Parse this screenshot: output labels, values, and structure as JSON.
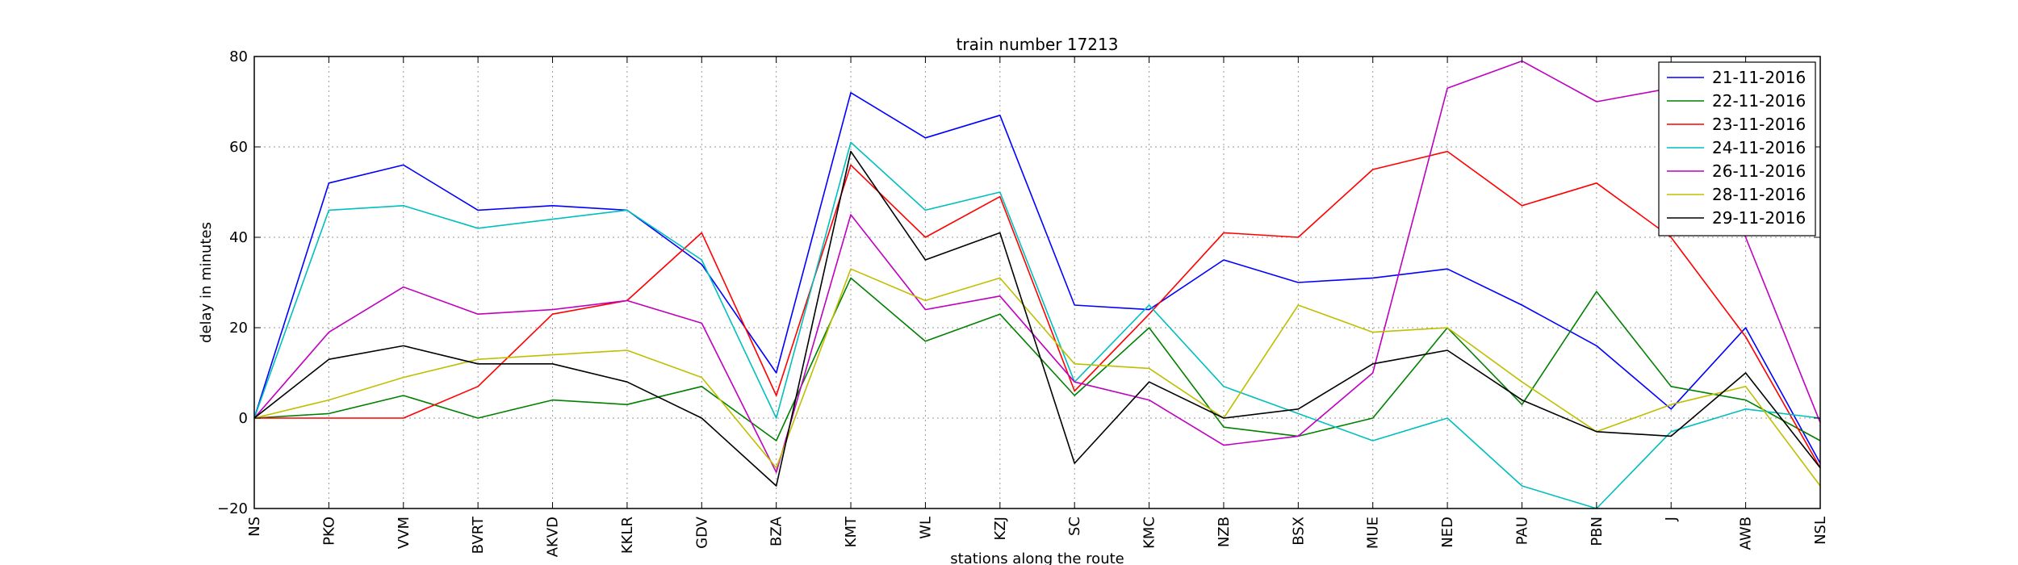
{
  "chart_data": {
    "type": "line",
    "title": "train number 17213",
    "xlabel": "stations along the route",
    "ylabel": "delay in minutes",
    "ylim": [
      -20,
      80
    ],
    "yticks": [
      -20,
      0,
      20,
      40,
      60,
      80
    ],
    "grid": true,
    "legend_position": "top-right",
    "categories": [
      "NS",
      "PKO",
      "VVM",
      "BVRT",
      "AKVD",
      "KKLR",
      "GDV",
      "BZA",
      "KMT",
      "WL",
      "KZJ",
      "SC",
      "KMC",
      "NZB",
      "BSX",
      "MUE",
      "NED",
      "PAU",
      "PBN",
      "J",
      "AWB",
      "NSL"
    ],
    "series": [
      {
        "name": "21-11-2016",
        "color": "#0000ff",
        "values": [
          0,
          52,
          56,
          46,
          47,
          46,
          34,
          10,
          72,
          62,
          67,
          25,
          24,
          35,
          30,
          31,
          33,
          25,
          16,
          2,
          20,
          -10
        ]
      },
      {
        "name": "22-11-2016",
        "color": "#008000",
        "values": [
          0,
          1,
          5,
          0,
          4,
          3,
          7,
          -5,
          31,
          17,
          23,
          5,
          20,
          -2,
          -4,
          0,
          20,
          3,
          28,
          7,
          4,
          -5
        ]
      },
      {
        "name": "23-11-2016",
        "color": "#ff0000",
        "values": [
          0,
          0,
          0,
          7,
          23,
          26,
          41,
          5,
          56,
          40,
          49,
          6,
          23,
          41,
          40,
          55,
          59,
          47,
          52,
          40,
          18,
          -11
        ]
      },
      {
        "name": "24-11-2016",
        "color": "#00bfbf",
        "values": [
          0,
          46,
          47,
          42,
          44,
          46,
          35,
          0,
          61,
          46,
          50,
          8,
          25,
          7,
          1,
          -5,
          0,
          -15,
          -20,
          -3,
          2,
          0
        ]
      },
      {
        "name": "26-11-2016",
        "color": "#bf00bf",
        "values": [
          0,
          19,
          29,
          23,
          24,
          26,
          21,
          -12,
          45,
          24,
          27,
          8,
          4,
          -6,
          -4,
          10,
          73,
          79,
          70,
          73,
          40,
          -1
        ]
      },
      {
        "name": "28-11-2016",
        "color": "#bfbf00",
        "values": [
          0,
          4,
          9,
          13,
          14,
          15,
          9,
          -11,
          33,
          26,
          31,
          12,
          11,
          0,
          25,
          19,
          20,
          8,
          -3,
          3,
          7,
          -15
        ]
      },
      {
        "name": "29-11-2016",
        "color": "#000000",
        "values": [
          0,
          13,
          16,
          12,
          12,
          8,
          0,
          -15,
          59,
          35,
          41,
          -10,
          8,
          0,
          2,
          12,
          15,
          4,
          -3,
          -4,
          10,
          -11
        ]
      }
    ]
  }
}
